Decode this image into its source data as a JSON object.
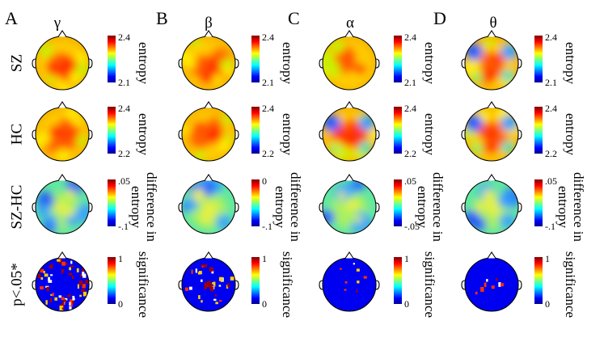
{
  "figure": {
    "panels": [
      {
        "letter": "A",
        "band": "γ"
      },
      {
        "letter": "B",
        "band": "β"
      },
      {
        "letter": "C",
        "band": "α"
      },
      {
        "letter": "D",
        "band": "θ"
      }
    ],
    "rows": [
      {
        "label": "SZ",
        "measure": "entropy",
        "scales": [
          {
            "max": "2.4",
            "min": "2.1"
          },
          {
            "max": "2.4",
            "min": "2.1"
          },
          {
            "max": "2.4",
            "min": "2.1"
          },
          {
            "max": "2.4",
            "min": "2.1"
          }
        ],
        "maps": [
          "warm",
          "warm",
          "warm",
          "warm-cool"
        ]
      },
      {
        "label": "HC",
        "measure": "entropy",
        "scales": [
          {
            "max": "2.4",
            "min": "2.2"
          },
          {
            "max": "2.4",
            "min": "2.2"
          },
          {
            "max": "2.4",
            "min": "2.2"
          },
          {
            "max": "2.4",
            "min": "2.2"
          }
        ],
        "maps": [
          "warm",
          "warm",
          "warm-cool",
          "warm-cool"
        ]
      },
      {
        "label": "SZ-HC",
        "measure": "difference in entropy",
        "measure_lines": [
          "difference in",
          "entropy"
        ],
        "scales": [
          {
            "max": ".05",
            "min": "-.1"
          },
          {
            "max": "0",
            "min": "-.1"
          },
          {
            "max": ".05",
            "min": "-.05"
          },
          {
            "max": ".05",
            "min": "-.1"
          }
        ],
        "maps": [
          "diff",
          "diff",
          "diff",
          "diff"
        ]
      },
      {
        "label": "p<.05*",
        "measure": "significance",
        "scales": [
          {
            "max": "1",
            "min": "0"
          },
          {
            "max": "1",
            "min": "0"
          },
          {
            "max": "1",
            "min": "0"
          },
          {
            "max": "1",
            "min": "0"
          }
        ],
        "maps": [
          "sig-high",
          "sig-mid",
          "sig-low",
          "sig-low"
        ]
      }
    ],
    "colors": {
      "colormap": [
        "#00008f",
        "#0000ff",
        "#00ffff",
        "#ffff00",
        "#ff0000",
        "#800000"
      ],
      "outline": "#000000",
      "background": "#ffffff"
    }
  }
}
